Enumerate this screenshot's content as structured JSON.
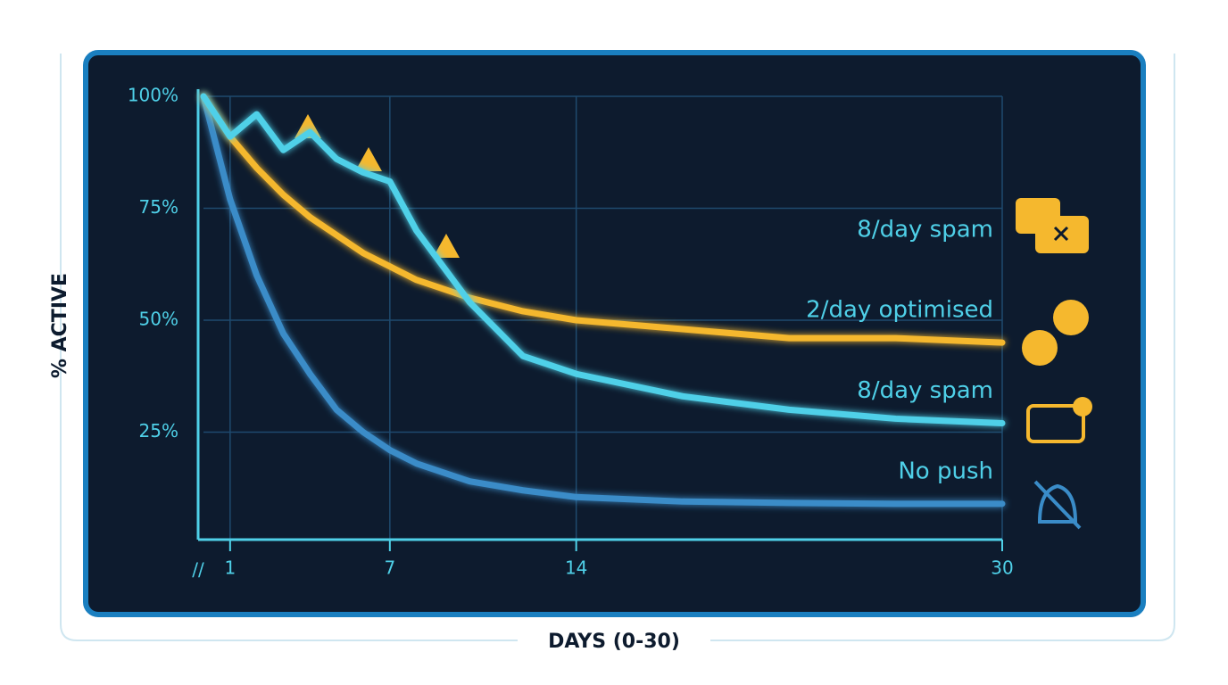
{
  "chart_data": {
    "type": "line",
    "y_label": "% ACTIVE",
    "x_label": "DAYS (0-30)",
    "x": [
      0,
      1,
      2,
      3,
      4,
      5,
      6,
      7,
      8,
      10,
      12,
      14,
      18,
      22,
      26,
      30
    ],
    "series": [
      {
        "name": "8/day spam",
        "color": "#4fd0e8",
        "values": [
          100,
          91,
          96,
          88,
          92,
          86,
          83,
          81,
          70,
          54,
          42,
          38,
          33,
          30,
          28,
          27
        ]
      },
      {
        "name": "2/day optimised",
        "color": "#f5b82e",
        "values": [
          100,
          91,
          84,
          78,
          73,
          69,
          65,
          62,
          59,
          55,
          52,
          50,
          48,
          46,
          46,
          45
        ]
      },
      {
        "name": "No push",
        "color": "#3a8cc8",
        "values": [
          100,
          77,
          60,
          47,
          38,
          30,
          25,
          21,
          18,
          14,
          12,
          10.5,
          9.5,
          9.2,
          9,
          9
        ]
      }
    ],
    "annotation": "8/day spam",
    "xlim": [
      0,
      30
    ],
    "xticks": [
      1,
      7,
      14,
      30
    ],
    "ylim": [
      0,
      100
    ],
    "yticks": [
      {
        "value": 25,
        "label": "25%"
      },
      {
        "value": 50,
        "label": "50%"
      },
      {
        "value": 75,
        "label": "75%"
      },
      {
        "value": 100,
        "label": "100%"
      }
    ],
    "grid": true
  }
}
